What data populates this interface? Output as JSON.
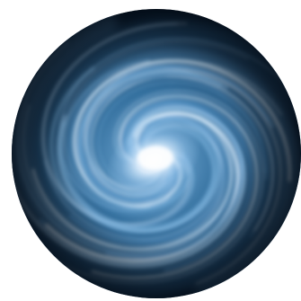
{
  "image": {
    "subject": "swirling-blue-vortex",
    "colors": {
      "background": "#ffffff",
      "deep": "#06121f",
      "dark": "#0f2a45",
      "mid": "#2f6a98",
      "light": "#7fb6e0",
      "glow": "#ffffff"
    }
  }
}
